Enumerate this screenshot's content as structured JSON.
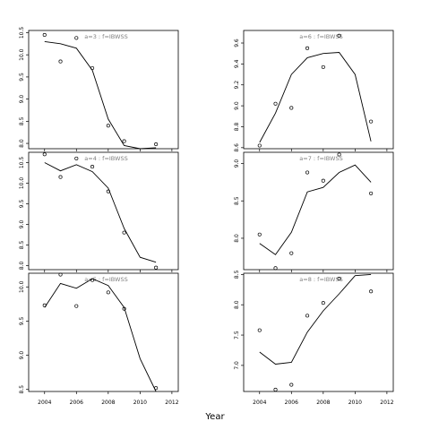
{
  "figure": {
    "xlabel": "Year"
  },
  "chart_data": [
    {
      "type": "line",
      "title": "a=3 : f=IBWSS",
      "xlim": [
        2003,
        2012.4
      ],
      "ylim": [
        7.88,
        10.55
      ],
      "xticks": [
        2004,
        2006,
        2008,
        2010,
        2012
      ],
      "yticks": [
        8.0,
        8.5,
        9.0,
        9.5,
        10.0,
        10.5
      ],
      "ytick_labels": [
        "8.0",
        "8.5",
        "9.0",
        "9.5",
        "10.0",
        "10.5"
      ],
      "show_xtick_labels": false,
      "series": [
        {
          "kind": "points",
          "x": [
            2004,
            2005,
            2006,
            2007,
            2008,
            2009,
            2011
          ],
          "y": [
            10.45,
            9.85,
            10.38,
            9.7,
            8.4,
            8.05,
            7.98
          ]
        },
        {
          "kind": "line",
          "x": [
            2004,
            2005,
            2006,
            2007,
            2008,
            2009,
            2010,
            2011
          ],
          "y": [
            10.3,
            10.25,
            10.15,
            9.65,
            8.55,
            7.95,
            7.88,
            7.9
          ]
        }
      ]
    },
    {
      "type": "line",
      "title": "a=6 : f=IBWSS",
      "xlim": [
        2003,
        2012.4
      ],
      "ylim": [
        8.59,
        9.72
      ],
      "xticks": [
        2004,
        2006,
        2008,
        2010,
        2012
      ],
      "yticks": [
        8.6,
        8.8,
        9.0,
        9.2,
        9.4,
        9.6
      ],
      "ytick_labels": [
        "8.6",
        "8.8",
        "9.0",
        "9.2",
        "9.4",
        "9.6"
      ],
      "show_xtick_labels": false,
      "series": [
        {
          "kind": "points",
          "x": [
            2004,
            2005,
            2006,
            2007,
            2008,
            2009,
            2011
          ],
          "y": [
            8.62,
            9.02,
            8.98,
            9.55,
            9.37,
            9.67,
            8.85
          ]
        },
        {
          "kind": "line",
          "x": [
            2004,
            2005,
            2006,
            2007,
            2008,
            2009,
            2010,
            2011
          ],
          "y": [
            8.65,
            8.93,
            9.3,
            9.46,
            9.5,
            9.51,
            9.3,
            8.66
          ]
        }
      ]
    },
    {
      "type": "line",
      "title": "a=4 : f=IBWSS",
      "xlim": [
        2003,
        2012.4
      ],
      "ylim": [
        7.9,
        10.75
      ],
      "xticks": [
        2004,
        2006,
        2008,
        2010,
        2012
      ],
      "yticks": [
        8.0,
        8.5,
        9.0,
        9.5,
        10.0,
        10.5
      ],
      "ytick_labels": [
        "8.0",
        "8.5",
        "9.0",
        "9.5",
        "10.0",
        "10.5"
      ],
      "show_xtick_labels": false,
      "series": [
        {
          "kind": "points",
          "x": [
            2004,
            2005,
            2006,
            2007,
            2008,
            2009,
            2011
          ],
          "y": [
            10.7,
            10.15,
            10.6,
            10.4,
            9.8,
            8.8,
            7.95
          ]
        },
        {
          "kind": "line",
          "x": [
            2004,
            2005,
            2006,
            2007,
            2008,
            2009,
            2010,
            2011
          ],
          "y": [
            10.5,
            10.3,
            10.45,
            10.28,
            9.88,
            8.9,
            8.2,
            8.08
          ]
        }
      ]
    },
    {
      "type": "line",
      "title": "a=7 : f=IBWSS",
      "xlim": [
        2003,
        2012.4
      ],
      "ylim": [
        7.58,
        9.15
      ],
      "xticks": [
        2004,
        2006,
        2008,
        2010,
        2012
      ],
      "yticks": [
        8.0,
        8.5,
        9.0
      ],
      "ytick_labels": [
        "8.0",
        "8.5",
        "9.0"
      ],
      "show_xtick_labels": false,
      "series": [
        {
          "kind": "points",
          "x": [
            2004,
            2005,
            2006,
            2007,
            2008,
            2009,
            2011
          ],
          "y": [
            8.05,
            7.6,
            7.8,
            8.88,
            8.77,
            9.12,
            8.6
          ]
        },
        {
          "kind": "line",
          "x": [
            2004,
            2005,
            2006,
            2007,
            2008,
            2009,
            2010,
            2011
          ],
          "y": [
            7.93,
            7.78,
            8.08,
            8.62,
            8.68,
            8.88,
            8.98,
            8.75
          ]
        }
      ]
    },
    {
      "type": "line",
      "title": "a=5 : f=IBWSS",
      "xlim": [
        2003,
        2012.4
      ],
      "ylim": [
        8.47,
        10.2
      ],
      "xticks": [
        2004,
        2006,
        2008,
        2010,
        2012
      ],
      "yticks": [
        8.5,
        9.0,
        9.5,
        10.0
      ],
      "ytick_labels": [
        "8.5",
        "9.0",
        "9.5",
        "10.0"
      ],
      "show_xtick_labels": true,
      "series": [
        {
          "kind": "points",
          "x": [
            2004,
            2005,
            2006,
            2007,
            2008,
            2009,
            2011
          ],
          "y": [
            9.73,
            10.18,
            9.72,
            10.1,
            9.92,
            9.68,
            8.52
          ]
        },
        {
          "kind": "line",
          "x": [
            2004,
            2005,
            2006,
            2007,
            2008,
            2009,
            2010,
            2011
          ],
          "y": [
            9.7,
            10.05,
            9.98,
            10.12,
            10.02,
            9.7,
            8.95,
            8.47
          ]
        }
      ]
    },
    {
      "type": "line",
      "title": "a=8 : f=IBWSS",
      "xlim": [
        2003,
        2012.4
      ],
      "ylim": [
        6.57,
        8.52
      ],
      "xticks": [
        2004,
        2006,
        2008,
        2010,
        2012
      ],
      "yticks": [
        7.0,
        7.5,
        8.0,
        8.5
      ],
      "ytick_labels": [
        "7.0",
        "7.5",
        "8.0",
        "8.5"
      ],
      "show_xtick_labels": true,
      "series": [
        {
          "kind": "points",
          "x": [
            2004,
            2005,
            2006,
            2007,
            2008,
            2009,
            2011
          ],
          "y": [
            7.58,
            6.6,
            6.68,
            7.82,
            8.03,
            8.43,
            8.22
          ]
        },
        {
          "kind": "line",
          "x": [
            2004,
            2005,
            2006,
            2007,
            2008,
            2009,
            2010,
            2011
          ],
          "y": [
            7.22,
            7.02,
            7.05,
            7.55,
            7.9,
            8.18,
            8.48,
            8.5
          ]
        }
      ]
    }
  ]
}
